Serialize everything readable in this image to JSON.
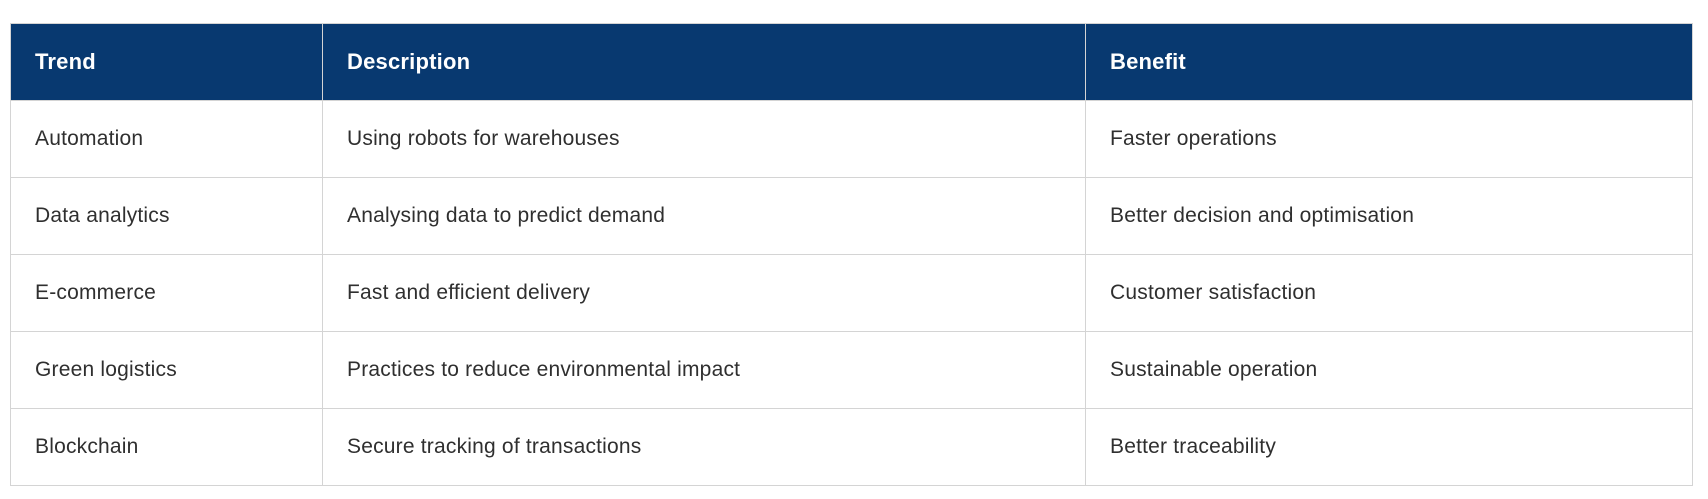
{
  "table": {
    "colors": {
      "header_bg": "#083970",
      "header_text": "#ffffff",
      "body_text": "#2f2f2f",
      "border": "#d4d4d4",
      "row_bg": "#ffffff"
    },
    "columns": [
      {
        "key": "trend",
        "label": "Trend"
      },
      {
        "key": "description",
        "label": "Description"
      },
      {
        "key": "benefit",
        "label": "Benefit"
      }
    ],
    "rows": [
      {
        "trend": "Automation",
        "description": "Using robots for warehouses",
        "benefit": "Faster operations"
      },
      {
        "trend": "Data analytics",
        "description": "Analysing data to predict demand",
        "benefit": "Better decision and optimisation"
      },
      {
        "trend": "E-commerce",
        "description": "Fast and efficient delivery",
        "benefit": "Customer satisfaction"
      },
      {
        "trend": "Green logistics",
        "description": "Practices to reduce environmental impact",
        "benefit": "Sustainable operation"
      },
      {
        "trend": "Blockchain",
        "description": "Secure tracking of transactions",
        "benefit": "Better traceability"
      }
    ]
  }
}
